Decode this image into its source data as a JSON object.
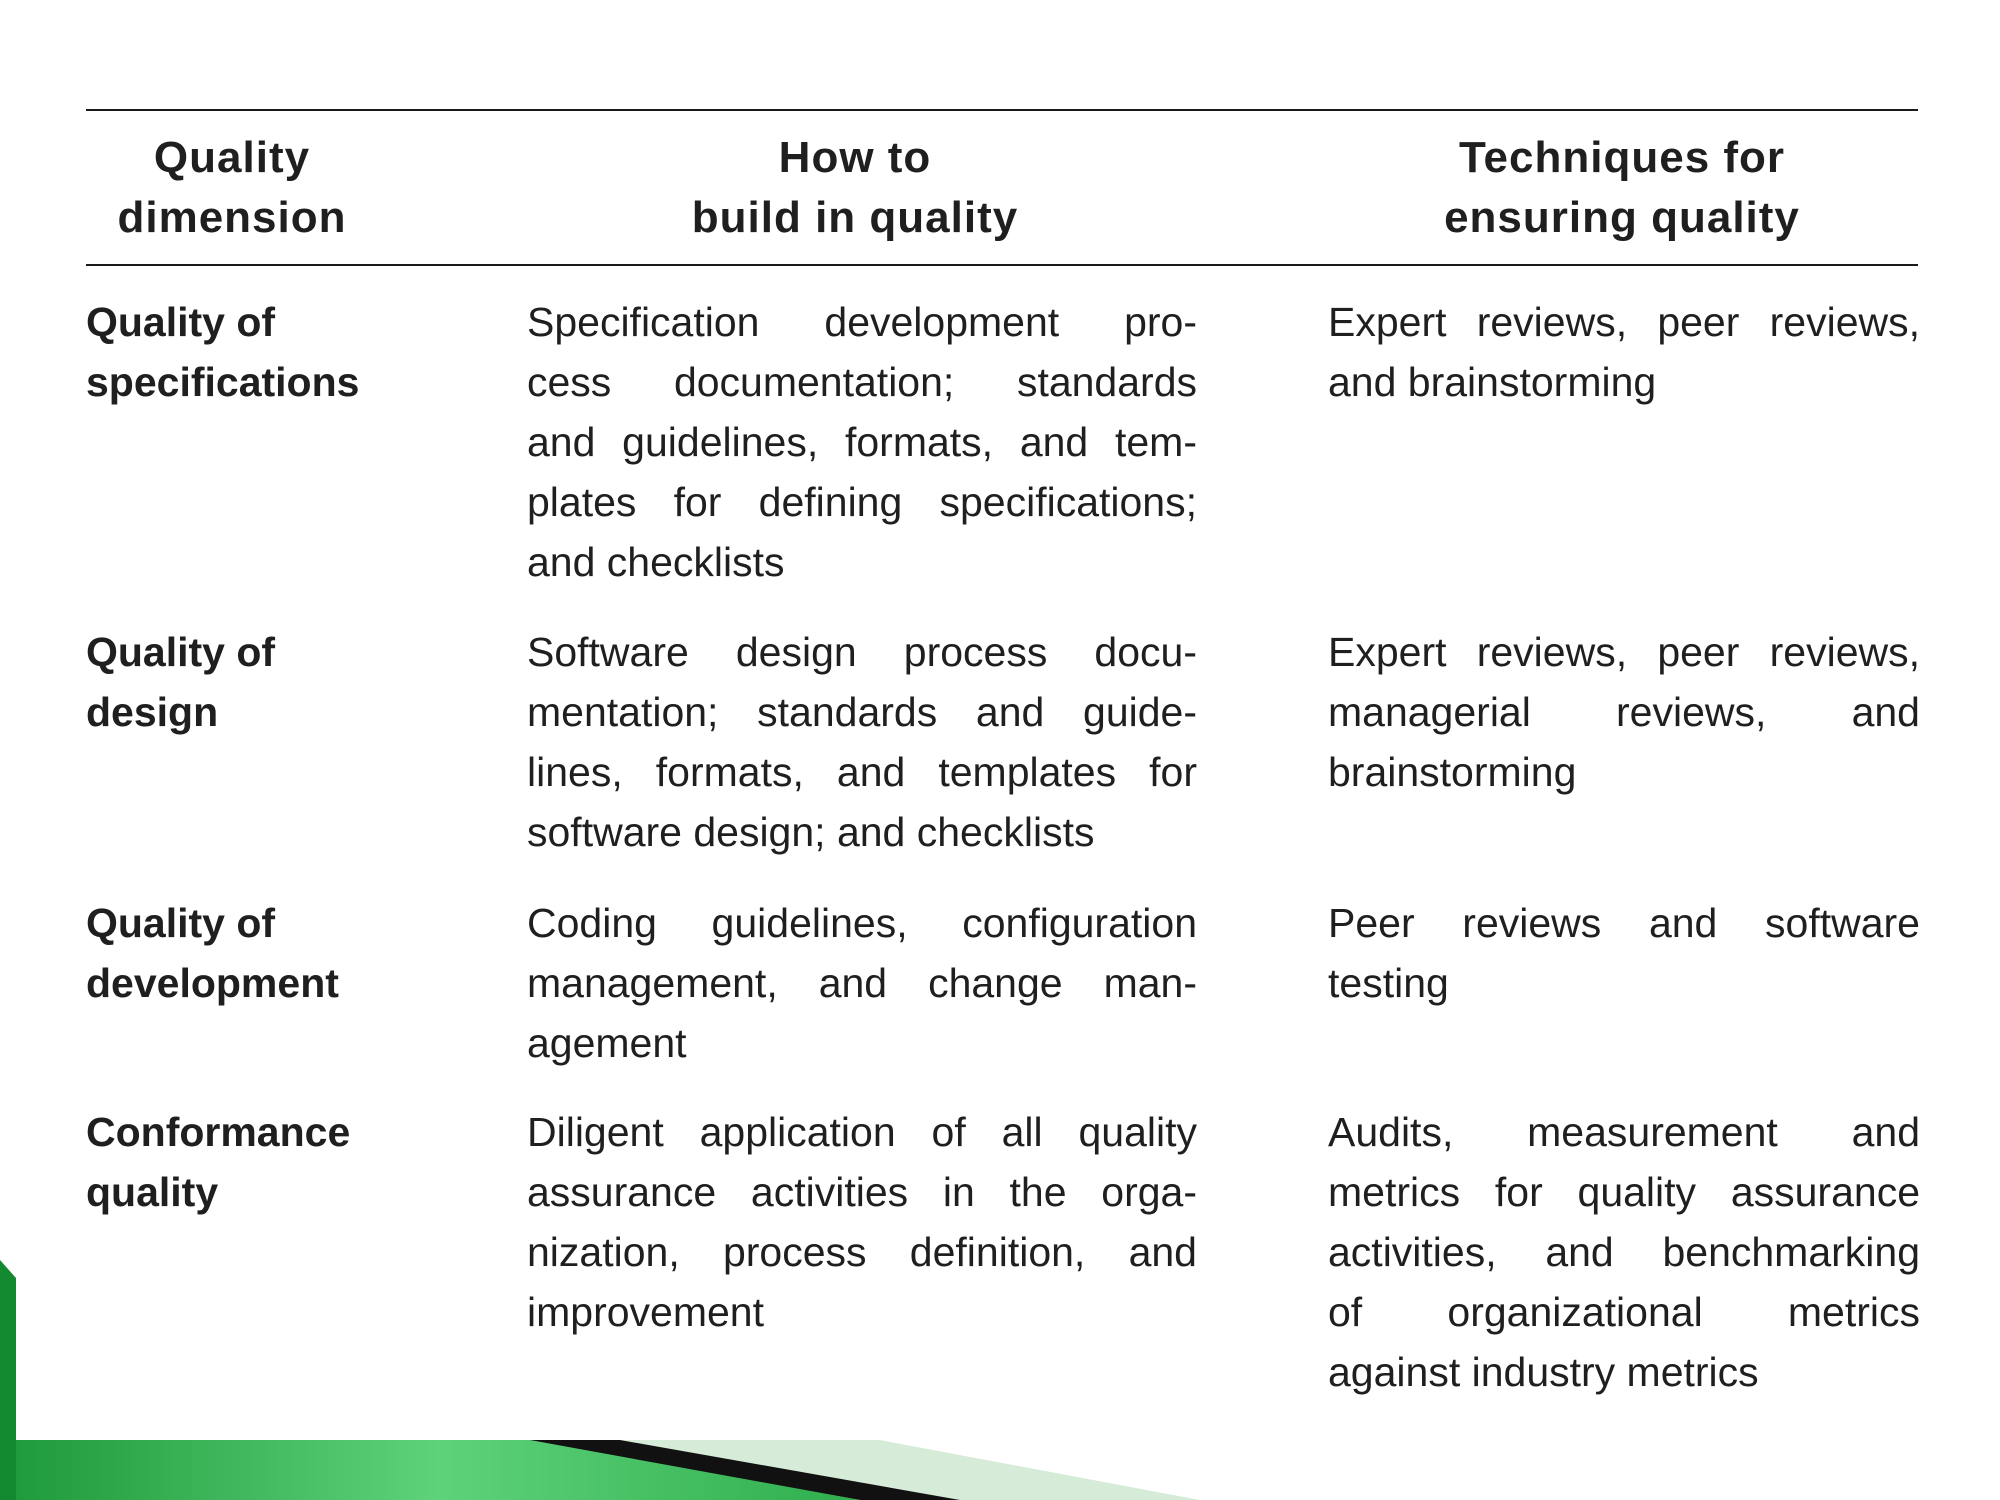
{
  "table": {
    "headers": [
      [
        "Quality",
        "dimension"
      ],
      [
        "How to",
        "build in quality"
      ],
      [
        "Techniques for",
        "ensuring quality"
      ]
    ],
    "rows": [
      {
        "dimension": [
          "Quality of",
          "specifications"
        ],
        "build": [
          "Specification development pro-",
          "cess documentation; standards",
          "and guidelines, formats, and tem-",
          "plates for defining specifications;",
          "and checklists"
        ],
        "techniques": [
          "Expert reviews, peer reviews,",
          "and brainstorming"
        ]
      },
      {
        "dimension": [
          "Quality of",
          "design"
        ],
        "build": [
          "Software design process docu-",
          "mentation; standards and guide-",
          "lines, formats, and templates for",
          "software design; and checklists"
        ],
        "techniques": [
          "Expert reviews, peer reviews,",
          "managerial reviews, and",
          "brainstorming"
        ]
      },
      {
        "dimension": [
          "Quality of",
          "development"
        ],
        "build": [
          "Coding guidelines, configuration",
          "management, and change man-",
          "agement"
        ],
        "techniques": [
          "Peer reviews and software",
          "testing"
        ]
      },
      {
        "dimension": [
          "Conformance",
          "quality"
        ],
        "build": [
          "Diligent application of all quality",
          "assurance activities in the orga-",
          "nization, process definition, and",
          "improvement"
        ],
        "techniques": [
          "Audits, measurement and",
          "metrics for quality assurance",
          "activities, and benchmarking",
          "of organizational metrics",
          "against industry metrics"
        ]
      }
    ]
  },
  "colors": {
    "accent_green": "#1f9a3c",
    "light_green": "#5fd27a",
    "pale_green": "#d6ecd9",
    "dark_band": "#111111"
  }
}
